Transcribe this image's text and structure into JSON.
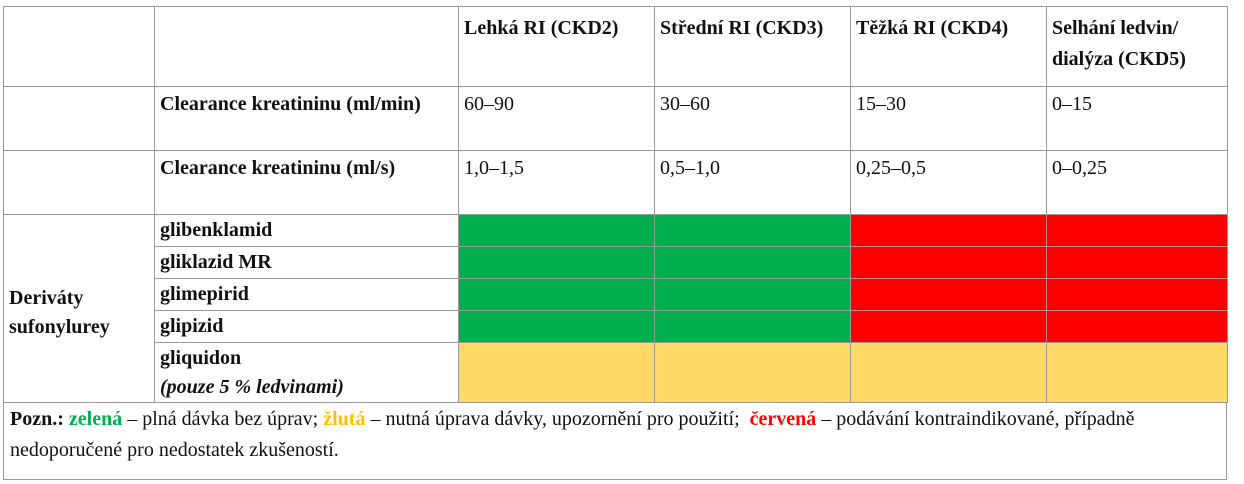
{
  "columns": [
    "Lehká RI (CKD2)",
    "Střední RI (CKD3)",
    "Těžká RI (CKD4)",
    "Selhání ledvin/ dialýza (CKD5)"
  ],
  "rows_clearance": [
    {
      "label": "Clearance kreatininu (ml/min)",
      "values": [
        "60–90",
        "30–60",
        "15–30",
        "0–15"
      ]
    },
    {
      "label": "Clearance kreatininu (ml/s)",
      "values": [
        "1,0–1,5",
        "0,5–1,0",
        "0,25–0,5",
        "0–0,25"
      ]
    }
  ],
  "group_label": "Deriváty sufonylurey",
  "drugs": [
    {
      "name": "glibenklamid",
      "sub": "",
      "cells": [
        "green",
        "green",
        "red",
        "red"
      ]
    },
    {
      "name": "gliklazid MR",
      "sub": "",
      "cells": [
        "green",
        "green",
        "red",
        "red"
      ]
    },
    {
      "name": "glimepirid",
      "sub": "",
      "cells": [
        "green",
        "green",
        "red",
        "red"
      ]
    },
    {
      "name": "glipizid",
      "sub": "",
      "cells": [
        "green",
        "green",
        "red",
        "red"
      ]
    },
    {
      "name": "gliquidon",
      "sub": "(pouze 5 % ledvinami)",
      "cells": [
        "yellow",
        "yellow",
        "yellow",
        "yellow"
      ]
    }
  ],
  "colors": {
    "green": "#00b050",
    "red": "#ff0000",
    "yellow": "#ffd966"
  },
  "note": {
    "label": "Pozn.:",
    "green_word": "zelená",
    "green_text": "– plná dávka bez úprav;",
    "yellow_word": "žlutá",
    "yellow_text": "– nutná úprava dávky, upozornění pro použití;",
    "red_word": "červená",
    "red_text": "– podávání kontraindikované, případně nedoporučené pro nedostatek zkušeností."
  }
}
